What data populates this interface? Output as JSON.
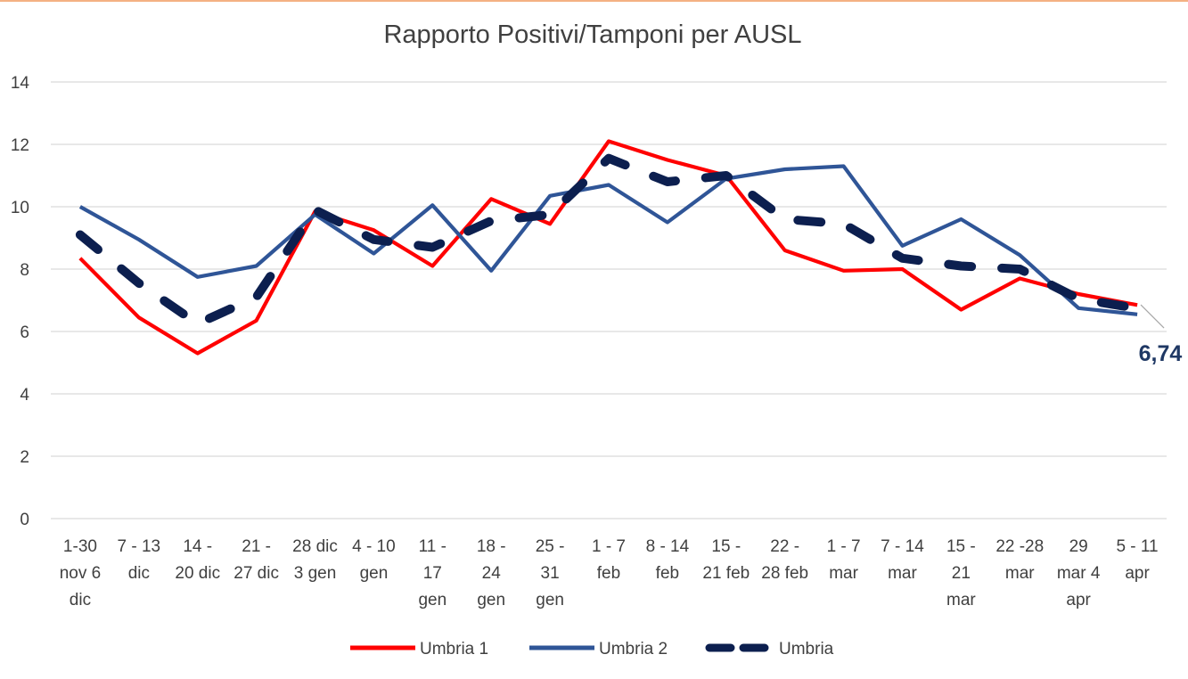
{
  "chart_data": {
    "type": "line",
    "title": "Rapporto Positivi/Tamponi per AUSL",
    "xlabel": "",
    "ylabel": "",
    "ylim": [
      0,
      14
    ],
    "yticks": [
      0,
      2,
      4,
      6,
      8,
      10,
      12,
      14
    ],
    "grid": true,
    "legend_position": "bottom",
    "categories": [
      [
        "1-30",
        "nov 6",
        "dic"
      ],
      [
        "7 - 13",
        "dic"
      ],
      [
        "14 -",
        "20 dic"
      ],
      [
        "21 -",
        "27 dic"
      ],
      [
        "28 dic",
        "3 gen"
      ],
      [
        "4 - 10",
        "gen"
      ],
      [
        "11 -",
        "17",
        "gen"
      ],
      [
        "18 -",
        "24",
        "gen"
      ],
      [
        "25 -",
        "31",
        "gen"
      ],
      [
        "1 - 7",
        "feb"
      ],
      [
        "8 - 14",
        "feb"
      ],
      [
        "15 -",
        "21 feb"
      ],
      [
        "22 -",
        "28 feb"
      ],
      [
        "1 - 7",
        "mar"
      ],
      [
        "7 - 14",
        "mar"
      ],
      [
        "15 -",
        "21",
        "mar"
      ],
      [
        "22 -28",
        "mar"
      ],
      [
        "29",
        "mar 4",
        "apr"
      ],
      [
        "5 - 11",
        "apr"
      ]
    ],
    "series": [
      {
        "name": "Umbria 1",
        "color": "#ff0000",
        "style": "solid",
        "values": [
          8.35,
          6.45,
          5.3,
          6.35,
          9.85,
          9.25,
          8.1,
          10.25,
          9.45,
          12.1,
          11.5,
          11.0,
          8.6,
          7.95,
          8.0,
          6.7,
          7.7,
          7.2,
          6.85
        ]
      },
      {
        "name": "Umbria 2",
        "color": "#2f5597",
        "style": "solid",
        "values": [
          10.0,
          8.95,
          7.75,
          8.1,
          9.75,
          8.5,
          10.05,
          7.95,
          10.35,
          10.7,
          9.5,
          10.9,
          11.2,
          11.3,
          8.75,
          9.6,
          8.45,
          6.75,
          6.55
        ]
      },
      {
        "name": "Umbria",
        "color": "#0c1f4f",
        "style": "dashed",
        "values": [
          9.1,
          7.55,
          6.25,
          7.1,
          9.9,
          8.95,
          8.7,
          9.55,
          9.75,
          11.55,
          10.8,
          11.0,
          9.6,
          9.45,
          8.35,
          8.1,
          8.0,
          7.05,
          6.74
        ]
      }
    ],
    "data_label": {
      "series": "Umbria",
      "text": "6,74"
    }
  }
}
